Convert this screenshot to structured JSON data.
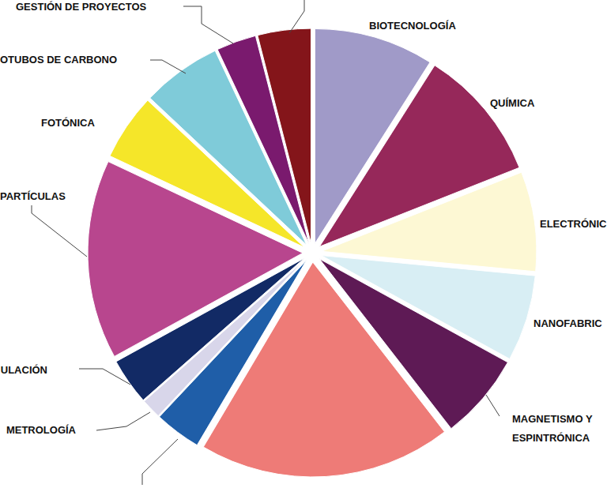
{
  "chart_data": {
    "type": "pie",
    "categories": [
      "BIOTECNOLOGÍA",
      "QUÍMICA",
      "ELECTRÓNIC",
      "NANOFABRIC",
      "MAGNETISMO Y ESPINTRÓNICA",
      null,
      null,
      "METROLOGÍA",
      "ULACIÓN",
      "PARTÍCULAS",
      "FOTÓNICA",
      "OTUBOS DE CARBONO",
      "GESTIÓN DE PROYECTOS",
      null
    ],
    "values": [
      9,
      10,
      7.5,
      6.5,
      6.5,
      19,
      3.5,
      1.5,
      3.5,
      15,
      5,
      6,
      3,
      4
    ],
    "colors": [
      "#a09ac8",
      "#96285a",
      "#fdf8d4",
      "#d8eef4",
      "#5e1a55",
      "#ee7b77",
      "#1f5ea8",
      "#d8d6ea",
      "#122a65",
      "#b8468e",
      "#f5e629",
      "#7fcbd9",
      "#7a1a6e",
      "#84151a"
    ]
  }
}
